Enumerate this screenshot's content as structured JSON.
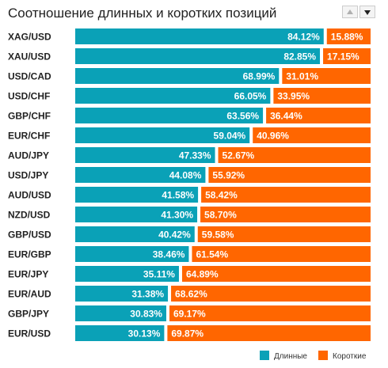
{
  "colors": {
    "long": "#0aa1b7",
    "short": "#ff6600"
  },
  "chart_data": {
    "type": "bar",
    "stacked": true,
    "orientation": "horizontal",
    "title": "Соотношение длинных и коротких позиций",
    "categories": [
      "XAG/USD",
      "XAU/USD",
      "USD/CAD",
      "USD/CHF",
      "GBP/CHF",
      "EUR/CHF",
      "AUD/JPY",
      "USD/JPY",
      "AUD/USD",
      "NZD/USD",
      "GBP/USD",
      "EUR/GBP",
      "EUR/JPY",
      "EUR/AUD",
      "GBP/JPY",
      "EUR/USD"
    ],
    "series": [
      {
        "name": "Длинные",
        "values": [
          84.12,
          82.85,
          68.99,
          66.05,
          63.56,
          59.04,
          47.33,
          44.08,
          41.58,
          41.3,
          40.42,
          38.46,
          35.11,
          31.38,
          30.83,
          30.13
        ],
        "labels": [
          "84.12%",
          "82.85%",
          "68.99%",
          "66.05%",
          "63.56%",
          "59.04%",
          "47.33%",
          "44.08%",
          "41.58%",
          "41.30%",
          "40.42%",
          "38.46%",
          "35.11%",
          "31.38%",
          "30.83%",
          "30.13%"
        ]
      },
      {
        "name": "Короткие",
        "values": [
          15.88,
          17.15,
          31.01,
          33.95,
          36.44,
          40.96,
          52.67,
          55.92,
          58.42,
          58.7,
          59.58,
          61.54,
          64.89,
          68.62,
          69.17,
          69.87
        ],
        "labels": [
          "15.88%",
          "17.15%",
          "31.01%",
          "33.95%",
          "36.44%",
          "40.96%",
          "52.67%",
          "55.92%",
          "58.42%",
          "58.70%",
          "59.58%",
          "61.54%",
          "64.89%",
          "68.62%",
          "69.17%",
          "69.87%"
        ]
      }
    ],
    "xlim": [
      0,
      100
    ],
    "legend_position": "bottom-right",
    "grid": false
  },
  "controls": {
    "sort_up_icon": "triangle-up-icon",
    "sort_down_icon": "triangle-down-icon"
  }
}
